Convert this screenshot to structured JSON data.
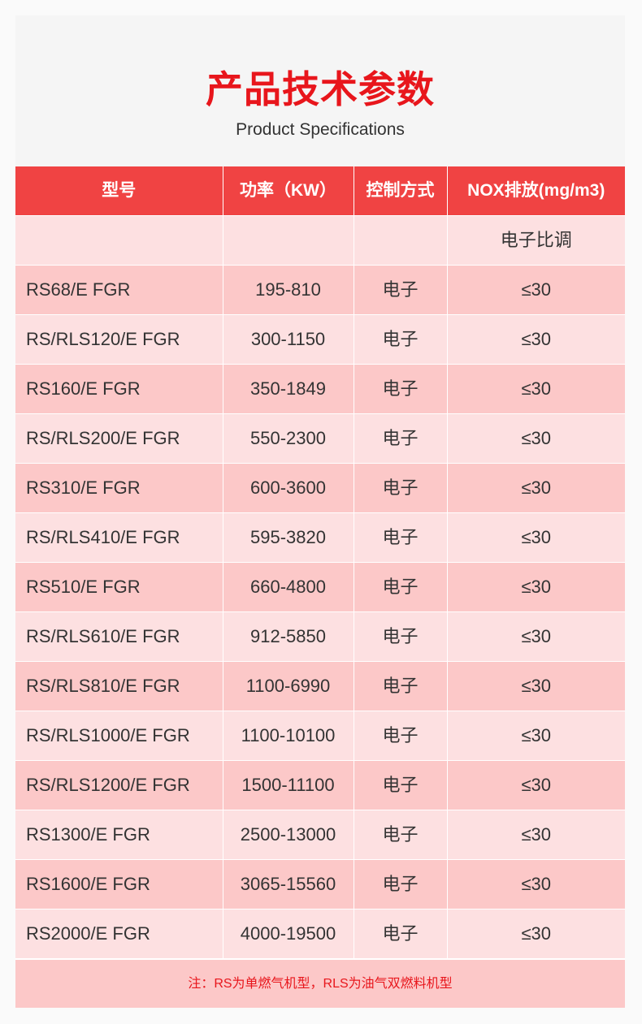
{
  "header": {
    "title": "产品技术参数",
    "subtitle": "Product Specifications"
  },
  "table": {
    "columns": [
      "型号",
      "功率（KW）",
      "控制方式",
      "NOX排放(mg/m3)"
    ],
    "subheader_row": [
      "",
      "",
      "",
      "电子比调"
    ],
    "rows": [
      [
        "RS68/E FGR",
        "195-810",
        "电子",
        "≤30"
      ],
      [
        "RS/RLS120/E FGR",
        "300-1150",
        "电子",
        "≤30"
      ],
      [
        "RS160/E FGR",
        "350-1849",
        "电子",
        "≤30"
      ],
      [
        "RS/RLS200/E FGR",
        "550-2300",
        "电子",
        "≤30"
      ],
      [
        "RS310/E FGR",
        "600-3600",
        "电子",
        "≤30"
      ],
      [
        "RS/RLS410/E FGR",
        "595-3820",
        "电子",
        "≤30"
      ],
      [
        "RS510/E FGR",
        "660-4800",
        "电子",
        "≤30"
      ],
      [
        "RS/RLS610/E FGR",
        "912-5850",
        "电子",
        "≤30"
      ],
      [
        "RS/RLS810/E FGR",
        "1100-6990",
        "电子",
        "≤30"
      ],
      [
        "RS/RLS1000/E FGR",
        "1100-10100",
        "电子",
        "≤30"
      ],
      [
        "RS/RLS1200/E FGR",
        "1500-11100",
        "电子",
        "≤30"
      ],
      [
        "RS1300/E FGR",
        "2500-13000",
        "电子",
        "≤30"
      ],
      [
        "RS1600/E FGR",
        "3065-15560",
        "电子",
        "≤30"
      ],
      [
        "RS2000/E FGR",
        "4000-19500",
        "电子",
        "≤30"
      ]
    ]
  },
  "note": "注：RS为单燃气机型，RLS为油气双燃料机型",
  "colors": {
    "accent": "#e8161c",
    "header_bg": "#f04343",
    "row_light": "#fde0e1",
    "row_dark": "#fcc8c8"
  }
}
